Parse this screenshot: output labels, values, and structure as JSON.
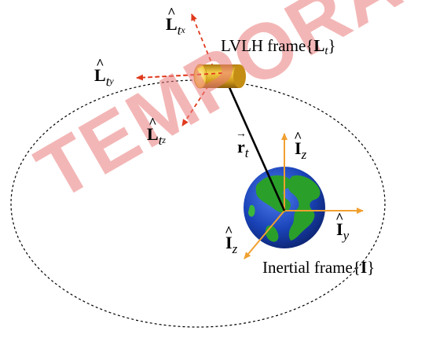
{
  "labels": {
    "lt_x": {
      "letter": "L",
      "sub": "t",
      "subsub": "x"
    },
    "lt_y": {
      "letter": "L",
      "sub": "t",
      "subsub": "y"
    },
    "lt_z": {
      "letter": "L",
      "sub": "t",
      "subsub": "z"
    },
    "r_t": {
      "letter": "r",
      "sub": "t"
    },
    "i_z_up": {
      "letter": "I",
      "sub": "z"
    },
    "i_y": {
      "letter": "I",
      "sub": "y"
    },
    "i_z_down": {
      "letter": "I",
      "sub": "z"
    },
    "lvlh_frame": {
      "prefix": "LVLH frame{",
      "bold": "L",
      "sub": "t",
      "suffix": "}"
    },
    "inertial_frame": {
      "prefix": "Inertial frame{",
      "bold": "I",
      "suffix": "}"
    }
  },
  "watermark": "TEMPORARY",
  "colors": {
    "lvlh_axes": "#e03a1e",
    "inertial_axes": "#f0a030",
    "position_vector": "#000000",
    "orbit": "#000000",
    "watermark": "#ea7a7a",
    "satellite": "#e8b51a",
    "earth_ocean": "#1a43b8",
    "earth_land": "#2aa02a"
  }
}
